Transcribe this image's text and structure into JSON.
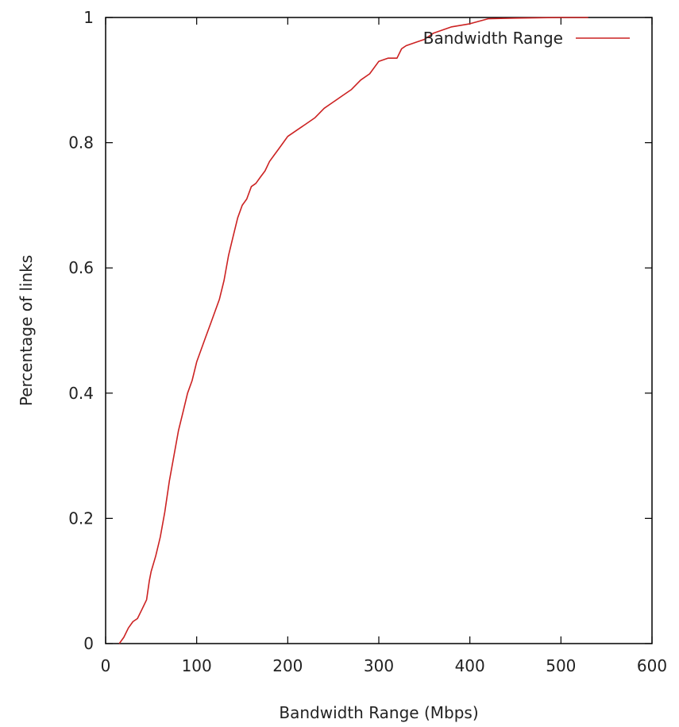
{
  "chart_data": {
    "type": "line",
    "title": "",
    "xlabel": "Bandwidth Range (Mbps)",
    "ylabel": "Percentage of links",
    "xlim": [
      0,
      600
    ],
    "ylim": [
      0,
      1
    ],
    "x_ticks": [
      "0",
      "100",
      "200",
      "300",
      "400",
      "500",
      "600"
    ],
    "y_ticks": [
      "0",
      "0.2",
      "0.4",
      "0.6",
      "0.8",
      "1"
    ],
    "grid": false,
    "legend_position": "top-right",
    "series": [
      {
        "name": "Bandwidth Range",
        "color": "#cc2222",
        "x": [
          15,
          20,
          25,
          30,
          35,
          40,
          45,
          48,
          50,
          55,
          60,
          65,
          70,
          75,
          80,
          85,
          90,
          95,
          100,
          105,
          110,
          115,
          120,
          125,
          130,
          135,
          140,
          145,
          150,
          155,
          160,
          165,
          170,
          175,
          180,
          185,
          190,
          195,
          200,
          210,
          220,
          230,
          240,
          250,
          260,
          270,
          280,
          290,
          300,
          310,
          320,
          325,
          330,
          340,
          350,
          360,
          380,
          400,
          420,
          450,
          500,
          530
        ],
        "y": [
          0.0,
          0.01,
          0.025,
          0.035,
          0.04,
          0.055,
          0.07,
          0.1,
          0.115,
          0.14,
          0.17,
          0.21,
          0.26,
          0.3,
          0.34,
          0.37,
          0.4,
          0.42,
          0.45,
          0.47,
          0.49,
          0.51,
          0.53,
          0.55,
          0.58,
          0.62,
          0.65,
          0.68,
          0.7,
          0.71,
          0.73,
          0.735,
          0.745,
          0.755,
          0.77,
          0.78,
          0.79,
          0.8,
          0.81,
          0.82,
          0.83,
          0.84,
          0.855,
          0.865,
          0.875,
          0.885,
          0.9,
          0.91,
          0.93,
          0.935,
          0.935,
          0.95,
          0.955,
          0.96,
          0.965,
          0.975,
          0.985,
          0.99,
          0.998,
          0.999,
          1.0,
          1.0
        ]
      }
    ]
  }
}
